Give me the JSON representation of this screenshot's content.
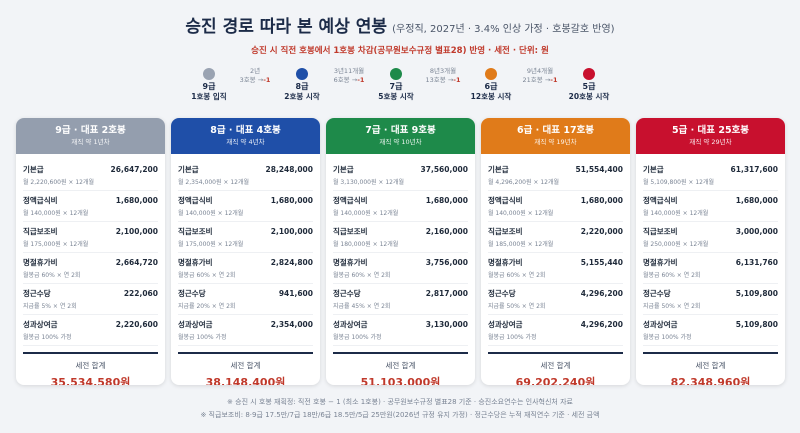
{
  "title": {
    "main": "승진 경로 따라 본 예상 연봉",
    "sub": "(우정직, 2027년 · 3.4% 인상 가정 · 호봉갈호 반영)"
  },
  "subtitle": "승진 시 직전 호봉에서 1호봉 차감(공무원보수규정 별표28) 반영 · 세전 · 단위: 원",
  "timeline": {
    "steps": [
      {
        "grade": "9급",
        "caption": "1호봉 입직",
        "color": "#9aa3b2"
      },
      {
        "grade": "8급",
        "caption": "2호봉 시작",
        "color": "#1f4fa8"
      },
      {
        "grade": "7급",
        "caption": "5호봉 시작",
        "color": "#1e8a4a"
      },
      {
        "grade": "6급",
        "caption": "12호봉 시작",
        "color": "#e07b1a"
      },
      {
        "grade": "5급",
        "caption": "20호봉 시작",
        "color": "#c8102e"
      }
    ],
    "gaps": [
      {
        "years": "2년",
        "from": "3호봉",
        "arrow": "→",
        "delta": "-1"
      },
      {
        "years": "3년11개월",
        "from": "6호봉",
        "arrow": "→",
        "delta": "-1"
      },
      {
        "years": "8년3개월",
        "from": "13호봉",
        "arrow": "→",
        "delta": "-1"
      },
      {
        "years": "9년4개월",
        "from": "21호봉",
        "arrow": "→",
        "delta": "-1"
      }
    ]
  },
  "cards": [
    {
      "header": "9급 · 대표 2호봉",
      "tenure": "재직 약 1년차",
      "color": "#949eae",
      "rows": [
        {
          "name": "기본급",
          "value": "26,647,200",
          "note": "월 2,220,600원 × 12개월"
        },
        {
          "name": "정액급식비",
          "value": "1,680,000",
          "note": "월 140,000원 × 12개월"
        },
        {
          "name": "직급보조비",
          "value": "2,100,000",
          "note": "월 175,000원 × 12개월"
        },
        {
          "name": "명절휴가비",
          "value": "2,664,720",
          "note": "월봉급 60% × 연 2회"
        },
        {
          "name": "정근수당",
          "value": "222,060",
          "note": "지급률 5% × 연 2회"
        },
        {
          "name": "성과상여금",
          "value": "2,220,600",
          "note": "월봉급 100% 가정"
        }
      ],
      "total_label": "세전 합계",
      "total": "35,534,580원"
    },
    {
      "header": "8급 · 대표 4호봉",
      "tenure": "재직 약 4년차",
      "color": "#1f4fa8",
      "rows": [
        {
          "name": "기본급",
          "value": "28,248,000",
          "note": "월 2,354,000원 × 12개월"
        },
        {
          "name": "정액급식비",
          "value": "1,680,000",
          "note": "월 140,000원 × 12개월"
        },
        {
          "name": "직급보조비",
          "value": "2,100,000",
          "note": "월 175,000원 × 12개월"
        },
        {
          "name": "명절휴가비",
          "value": "2,824,800",
          "note": "월봉급 60% × 연 2회"
        },
        {
          "name": "정근수당",
          "value": "941,600",
          "note": "지급률 20% × 연 2회"
        },
        {
          "name": "성과상여금",
          "value": "2,354,000",
          "note": "월봉급 100% 가정"
        }
      ],
      "total_label": "세전 합계",
      "total": "38,148,400원"
    },
    {
      "header": "7급 · 대표 9호봉",
      "tenure": "재직 약 10년차",
      "color": "#1e8a4a",
      "rows": [
        {
          "name": "기본급",
          "value": "37,560,000",
          "note": "월 3,130,000원 × 12개월"
        },
        {
          "name": "정액급식비",
          "value": "1,680,000",
          "note": "월 140,000원 × 12개월"
        },
        {
          "name": "직급보조비",
          "value": "2,160,000",
          "note": "월 180,000원 × 12개월"
        },
        {
          "name": "명절휴가비",
          "value": "3,756,000",
          "note": "월봉급 60% × 연 2회"
        },
        {
          "name": "정근수당",
          "value": "2,817,000",
          "note": "지급률 45% × 연 2회"
        },
        {
          "name": "성과상여금",
          "value": "3,130,000",
          "note": "월봉급 100% 가정"
        }
      ],
      "total_label": "세전 합계",
      "total": "51,103,000원"
    },
    {
      "header": "6급 · 대표 17호봉",
      "tenure": "재직 약 19년차",
      "color": "#e07b1a",
      "rows": [
        {
          "name": "기본급",
          "value": "51,554,400",
          "note": "월 4,296,200원 × 12개월"
        },
        {
          "name": "정액급식비",
          "value": "1,680,000",
          "note": "월 140,000원 × 12개월"
        },
        {
          "name": "직급보조비",
          "value": "2,220,000",
          "note": "월 185,000원 × 12개월"
        },
        {
          "name": "명절휴가비",
          "value": "5,155,440",
          "note": "월봉급 60% × 연 2회"
        },
        {
          "name": "정근수당",
          "value": "4,296,200",
          "note": "지급률 50% × 연 2회"
        },
        {
          "name": "성과상여금",
          "value": "4,296,200",
          "note": "월봉급 100% 가정"
        }
      ],
      "total_label": "세전 합계",
      "total": "69,202,240원"
    },
    {
      "header": "5급 · 대표 25호봉",
      "tenure": "재직 약 29년차",
      "color": "#c8102e",
      "rows": [
        {
          "name": "기본급",
          "value": "61,317,600",
          "note": "월 5,109,800원 × 12개월"
        },
        {
          "name": "정액급식비",
          "value": "1,680,000",
          "note": "월 140,000원 × 12개월"
        },
        {
          "name": "직급보조비",
          "value": "3,000,000",
          "note": "월 250,000원 × 12개월"
        },
        {
          "name": "명절휴가비",
          "value": "6,131,760",
          "note": "월봉급 60% × 연 2회"
        },
        {
          "name": "정근수당",
          "value": "5,109,800",
          "note": "지급률 50% × 연 2회"
        },
        {
          "name": "성과상여금",
          "value": "5,109,800",
          "note": "월봉급 100% 가정"
        }
      ],
      "total_label": "세전 합계",
      "total": "82,348,960원"
    }
  ],
  "footnotes": [
    "※ 승진 시 호봉 재획정: 직전 호봉 − 1 (최소 1호봉) · 공무원보수규정 별표28 기준 · 승진소요연수는 인사혁신처 자료",
    "※ 직급보조비: 8·9급 17.5만/7급 18만/6급 18.5만/5급 25만원(2026년 규정 유지 가정) · 정근수당은 누적 재직연수 기준 · 세전 금액"
  ]
}
